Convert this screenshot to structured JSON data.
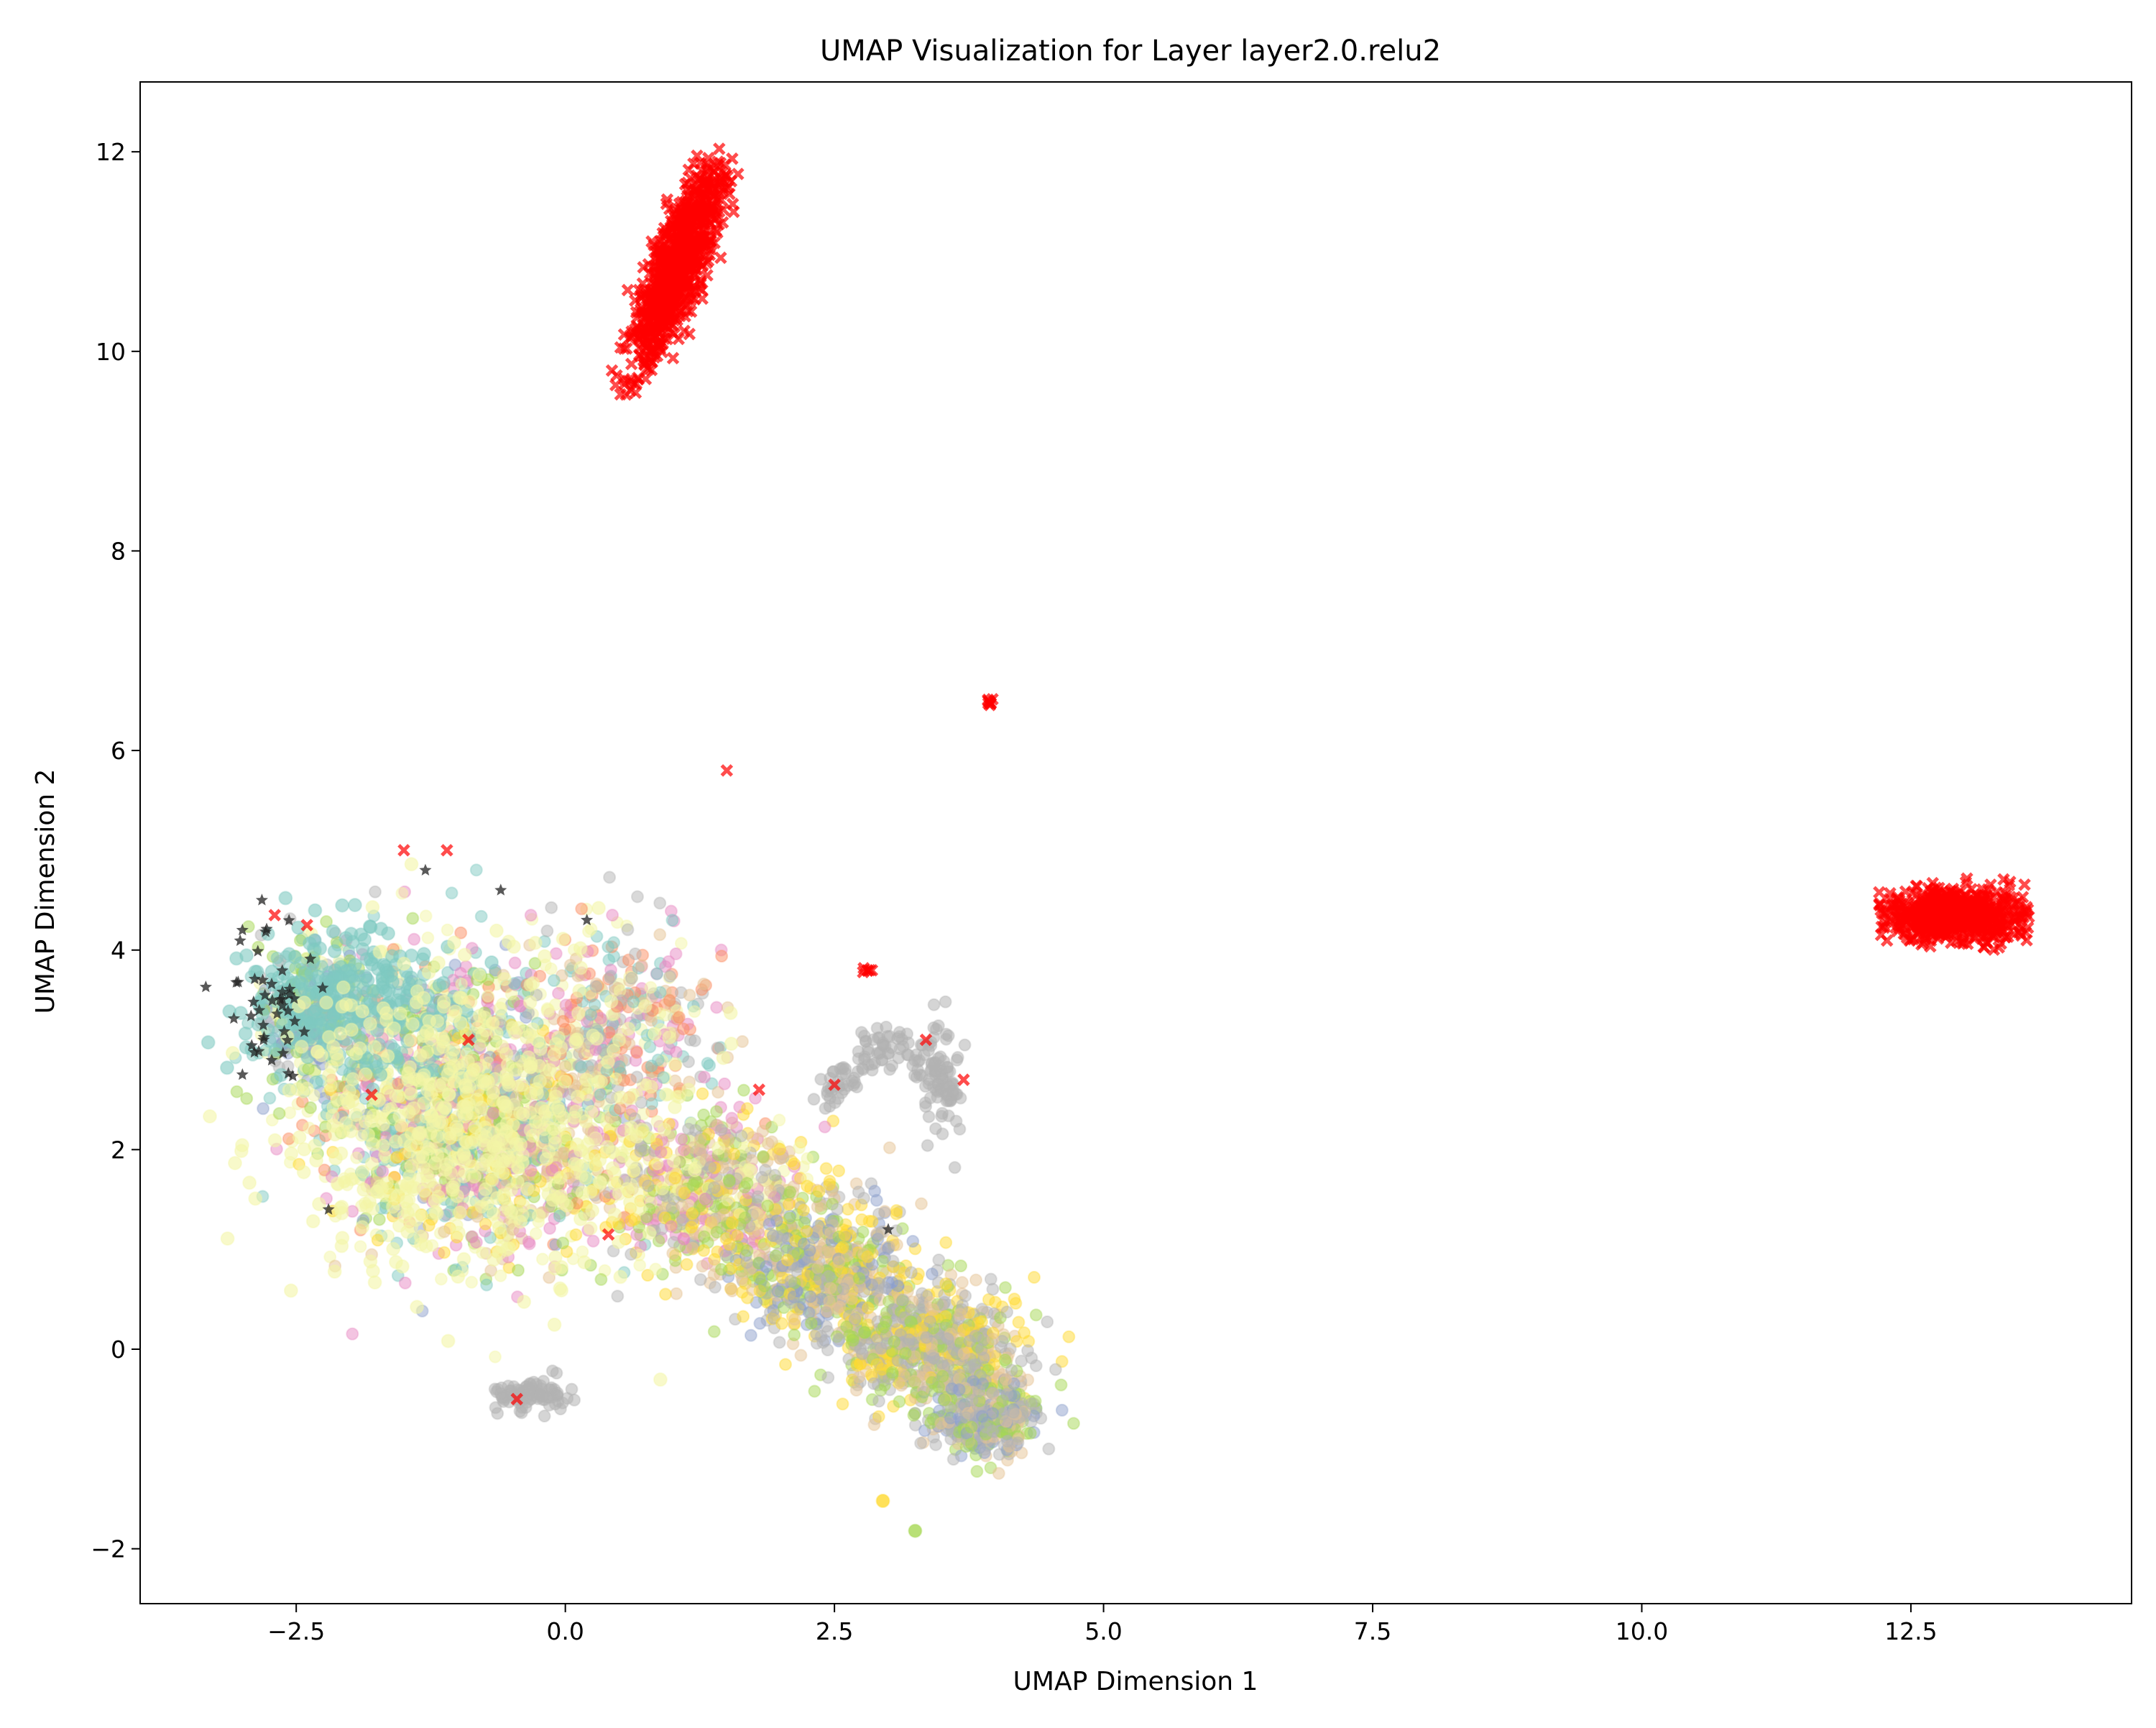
{
  "chart_data": {
    "type": "scatter",
    "title": "UMAP Visualization for Layer layer2.0.relu2",
    "xlabel": "UMAP Dimension 1",
    "ylabel": "UMAP Dimension 2",
    "xlim": [
      -3.95,
      14.55
    ],
    "ylim": [
      -2.55,
      12.7
    ],
    "xticks": [
      -2.5,
      0.0,
      2.5,
      5.0,
      7.5,
      10.0,
      12.5
    ],
    "xtick_labels": [
      "−2.5",
      "0.0",
      "2.5",
      "5.0",
      "7.5",
      "10.0",
      "12.5"
    ],
    "yticks": [
      -2,
      0,
      2,
      4,
      6,
      8,
      10,
      12
    ],
    "ytick_labels": [
      "−2",
      "0",
      "2",
      "4",
      "6",
      "8",
      "10",
      "12"
    ],
    "grid": false,
    "legend": "none",
    "colors": {
      "red": "#ff0000",
      "teal": "#7fc9c1",
      "pale_yellow": "#f4f5a6",
      "yellow": "#ffd92f",
      "tan": "#e5c494",
      "gray": "#b3b3b3",
      "green": "#a6d854",
      "orange": "#fc8d62",
      "pink": "#e78ac3",
      "lavender": "#8da0cb",
      "black": "#222222"
    },
    "clusters": [
      {
        "name": "upper red cluster",
        "color": "red",
        "marker": "x",
        "center": [
          0.95,
          10.9
        ],
        "spread": [
          0.22,
          0.55
        ],
        "extent_x": [
          0.55,
          1.45
        ],
        "extent_y": [
          9.5,
          12.05
        ]
      },
      {
        "name": "right red cluster",
        "color": "red",
        "marker": "x",
        "center": [
          12.9,
          4.35
        ],
        "spread": [
          0.35,
          0.15
        ],
        "extent_x": [
          12.2,
          13.6
        ],
        "extent_y": [
          4.0,
          4.95
        ]
      },
      {
        "name": "small red cluster",
        "color": "red",
        "marker": "x",
        "center": [
          3.95,
          6.48
        ],
        "spread": [
          0.03,
          0.03
        ]
      },
      {
        "name": "small red cluster 2",
        "color": "red",
        "marker": "x",
        "center": [
          2.8,
          3.8
        ],
        "spread": [
          0.03,
          0.02
        ]
      },
      {
        "name": "main mixed cluster",
        "colors": [
          "pale_yellow",
          "teal",
          "yellow",
          "tan",
          "gray",
          "green",
          "orange",
          "pink",
          "lavender"
        ],
        "marker": "o",
        "extent_x": [
          -3.0,
          4.8
        ],
        "extent_y": [
          -1.3,
          5.2
        ]
      },
      {
        "name": "gray arc",
        "color": "gray",
        "marker": "o",
        "extent_x": [
          2.4,
          3.7
        ],
        "extent_y": [
          2.2,
          3.2
        ]
      },
      {
        "name": "gray island",
        "color": "gray",
        "marker": "o",
        "center": [
          -0.3,
          -0.45
        ],
        "spread": [
          0.25,
          0.1
        ]
      },
      {
        "name": "yellow dot",
        "color": "yellow",
        "marker": "o",
        "center": [
          2.95,
          -1.52
        ]
      },
      {
        "name": "green dot",
        "color": "green",
        "marker": "o",
        "center": [
          3.25,
          -1.82
        ]
      },
      {
        "name": "black stars",
        "color": "black",
        "marker": "star",
        "extent_x": [
          -3.0,
          -2.0
        ],
        "extent_y": [
          2.8,
          4.3
        ]
      }
    ]
  }
}
